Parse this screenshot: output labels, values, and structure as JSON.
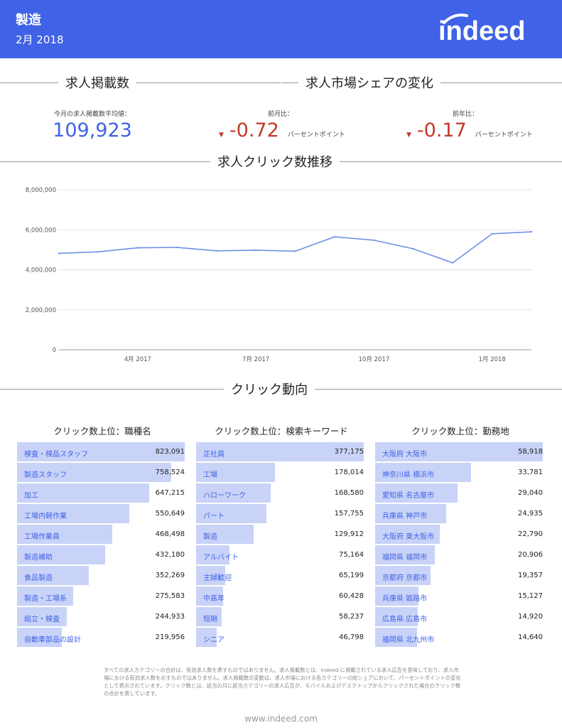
{
  "header": {
    "industry": "製造",
    "period": "2月 2018",
    "logo_text": "indeed"
  },
  "sections": {
    "postings": "求人掲載数",
    "share": "求人市場シェアの変化",
    "clicks_trend": "求人クリック数推移",
    "click_trends": "クリック動向"
  },
  "kpi": {
    "avg_label": "今月の求人掲載数平均値：",
    "avg_value": "109,923",
    "mom_label": "前月比：",
    "mom_value": "-0.72",
    "yoy_label": "前年比：",
    "yoy_value": "-0.17",
    "unit": "パーセントポイント",
    "down_color": "#c0392b"
  },
  "chart_data": {
    "type": "line",
    "x": [
      "2017-02",
      "2017-03",
      "2017-04",
      "2017-05",
      "2017-06",
      "2017-07",
      "2017-08",
      "2017-09",
      "2017-10",
      "2017-11",
      "2017-12",
      "2018-01",
      "2018-02"
    ],
    "values": [
      4820000,
      4900000,
      5100000,
      5120000,
      4950000,
      4980000,
      4930000,
      5650000,
      5480000,
      5050000,
      4350000,
      5800000,
      5900000
    ],
    "ylim": [
      0,
      8000000
    ],
    "yticks": [
      "8,000,000",
      "6,000,000",
      "4,000,000",
      "2,000,000",
      "0"
    ],
    "ytick_values": [
      8000000,
      6000000,
      4000000,
      2000000,
      0
    ],
    "xtick_labels": [
      "4月 2017",
      "7月 2017",
      "10月 2017",
      "1月 2018"
    ],
    "xtick_index": [
      2,
      5,
      8,
      11
    ],
    "line_color": "#6f8fe8",
    "grid": true
  },
  "tables": [
    {
      "title": "クリック数上位：職種名",
      "rows": [
        {
          "label": "検査・検品スタッフ",
          "value": "823,091",
          "n": 823091
        },
        {
          "label": "製造スタッフ",
          "value": "758,524",
          "n": 758524
        },
        {
          "label": "加工",
          "value": "647,215",
          "n": 647215
        },
        {
          "label": "工場内軽作業",
          "value": "550,649",
          "n": 550649
        },
        {
          "label": "工場作業員",
          "value": "468,498",
          "n": 468498
        },
        {
          "label": "製造補助",
          "value": "432,180",
          "n": 432180
        },
        {
          "label": "食品製造",
          "value": "352,269",
          "n": 352269
        },
        {
          "label": "製造・工場系",
          "value": "275,583",
          "n": 275583
        },
        {
          "label": "組立・検査",
          "value": "244,933",
          "n": 244933
        },
        {
          "label": "自動車部品の設計",
          "value": "219,956",
          "n": 219956
        }
      ]
    },
    {
      "title": "クリック数上位：検索キーワード",
      "rows": [
        {
          "label": "正社員",
          "value": "377,175",
          "n": 377175
        },
        {
          "label": "工場",
          "value": "178,014",
          "n": 178014
        },
        {
          "label": "ハローワーク",
          "value": "168,580",
          "n": 168580
        },
        {
          "label": "パート",
          "value": "157,755",
          "n": 157755
        },
        {
          "label": "製造",
          "value": "129,912",
          "n": 129912
        },
        {
          "label": "アルバイト",
          "value": "75,164",
          "n": 75164
        },
        {
          "label": "主婦歓迎",
          "value": "65,199",
          "n": 65199
        },
        {
          "label": "中高年",
          "value": "60,428",
          "n": 60428
        },
        {
          "label": "短期",
          "value": "58,237",
          "n": 58237
        },
        {
          "label": "シニア",
          "value": "46,798",
          "n": 46798
        }
      ]
    },
    {
      "title": "クリック数上位：勤務地",
      "rows": [
        {
          "label": "大阪府 大阪市",
          "value": "58,918",
          "n": 58918
        },
        {
          "label": "神奈川県 横浜市",
          "value": "33,781",
          "n": 33781
        },
        {
          "label": "愛知県 名古屋市",
          "value": "29,040",
          "n": 29040
        },
        {
          "label": "兵庫県 神戸市",
          "value": "24,935",
          "n": 24935
        },
        {
          "label": "大阪府 東大阪市",
          "value": "22,790",
          "n": 22790
        },
        {
          "label": "福岡県 福岡市",
          "value": "20,906",
          "n": 20906
        },
        {
          "label": "京都府 京都市",
          "value": "19,357",
          "n": 19357
        },
        {
          "label": "兵庫県 姫路市",
          "value": "15,127",
          "n": 15127
        },
        {
          "label": "広島県 広島市",
          "value": "14,920",
          "n": 14920
        },
        {
          "label": "福岡県 北九州市",
          "value": "14,640",
          "n": 14640
        }
      ]
    }
  ],
  "footnote": "すべての求人カテゴリーの合計は、有効求人数を表すものではありません。求人掲載数とは、Indeed に掲載されている求人広告を意味しており、求人市場における有効求人数を示すものではありません。求人掲載数の変動は、求人市場における各カテゴリーの総シェアにおいて、パーセントポイントの変化として表示されています。クリック数とは、該当の月に該当カテゴリーの求人広告が、モバイルおよびデスクトップからクリックされた場合のクリック数の合計を表しています。",
  "footer_url": "www.indeed.com",
  "colors": {
    "brand": "#3f62e6",
    "bar": "#c9d3f8"
  }
}
